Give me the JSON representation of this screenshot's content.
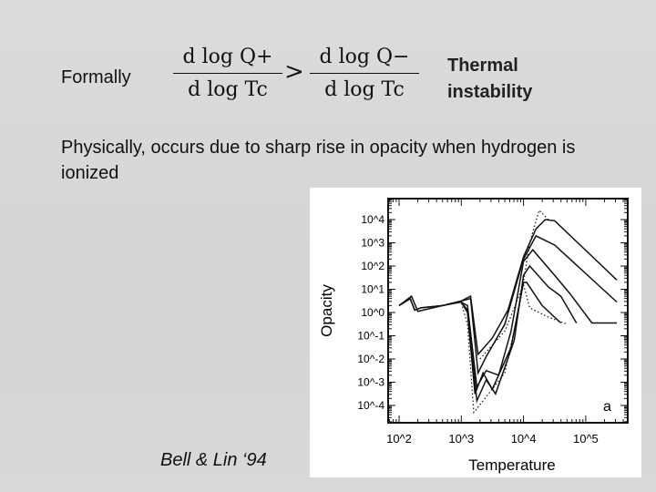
{
  "slide": {
    "formally_label": "Formally",
    "formula": {
      "lhs_num": "d log Q+",
      "lhs_den": "d log Tc",
      "operator": ">",
      "rhs_num": "d log Q−",
      "rhs_den": "d log Tc"
    },
    "result_label_line1": "Thermal",
    "result_label_line2": "instability",
    "body_text": "Physically, occurs due to sharp rise in opacity when hydrogen is ionized",
    "citation": "Bell & Lin ‘94"
  },
  "chart_data": {
    "type": "line",
    "xlabel": "Temperature",
    "ylabel": "Opacity",
    "panel_label": "a",
    "xscale": "log",
    "yscale": "log",
    "xlim_log10": [
      1.8,
      5.7
    ],
    "ylim_log10": [
      -4.9,
      4.9
    ],
    "x_ticks": [
      "10^2",
      "10^3",
      "10^4",
      "10^5"
    ],
    "y_ticks": [
      "10^4",
      "10^3",
      "10^2",
      "10^1",
      "10^0",
      "10^-1",
      "10^-2",
      "10^-3",
      "10^-4"
    ],
    "series": [
      {
        "name": "solid-1",
        "style": "solid",
        "points_log10": [
          [
            2,
            0.3
          ],
          [
            2.18,
            0.6
          ],
          [
            2.25,
            0.1
          ],
          [
            2.35,
            0.2
          ],
          [
            2.7,
            0.3
          ],
          [
            3,
            0.5
          ],
          [
            3.15,
            0.7
          ],
          [
            3.27,
            -1.8
          ],
          [
            3.5,
            -1.1
          ],
          [
            3.75,
            0.1
          ],
          [
            4,
            2.4
          ],
          [
            4.2,
            3.6
          ],
          [
            4.35,
            4
          ],
          [
            4.5,
            3.95
          ],
          [
            5.5,
            1.4
          ]
        ]
      },
      {
        "name": "solid-2",
        "style": "solid",
        "points_log10": [
          [
            2,
            0.3
          ],
          [
            2.18,
            0.6
          ],
          [
            2.25,
            0.1
          ],
          [
            2.35,
            0.2
          ],
          [
            2.7,
            0.3
          ],
          [
            3,
            0.5
          ],
          [
            3.15,
            0.6
          ],
          [
            3.27,
            -2.6
          ],
          [
            3.4,
            -1.9
          ],
          [
            3.7,
            -0.5
          ],
          [
            4,
            2.3
          ],
          [
            4.2,
            3.3
          ],
          [
            4.5,
            2.9
          ],
          [
            5.5,
            0.45
          ]
        ]
      },
      {
        "name": "solid-3",
        "style": "solid",
        "points_log10": [
          [
            2,
            0.3
          ],
          [
            2.2,
            0.7
          ],
          [
            2.3,
            0.05
          ],
          [
            2.7,
            0.3
          ],
          [
            3,
            0.45
          ],
          [
            3.1,
            0.3
          ],
          [
            3.25,
            -3.2
          ],
          [
            3.4,
            -2.5
          ],
          [
            3.6,
            -2.7
          ],
          [
            3.8,
            -0.8
          ],
          [
            4,
            2.2
          ],
          [
            4.15,
            2.7
          ],
          [
            4.5,
            1.6
          ],
          [
            4.75,
            0.8
          ],
          [
            5.1,
            -0.45
          ],
          [
            5.5,
            -0.45
          ]
        ]
      },
      {
        "name": "solid-4",
        "style": "solid",
        "points_log10": [
          [
            3,
            0.45
          ],
          [
            3.1,
            0.1
          ],
          [
            3.25,
            -3.8
          ],
          [
            3.4,
            -2.9
          ],
          [
            3.55,
            -3.5
          ],
          [
            3.85,
            -1.2
          ],
          [
            4,
            1.6
          ],
          [
            4.1,
            2.0
          ],
          [
            4.4,
            1.1
          ],
          [
            4.6,
            0.7
          ],
          [
            4.85,
            -0.45
          ]
        ]
      },
      {
        "name": "solid-5",
        "style": "solid",
        "points_log10": [
          [
            3,
            0.45
          ],
          [
            3.1,
            0.0
          ],
          [
            3.22,
            -3.5
          ],
          [
            3.35,
            -2.6
          ],
          [
            3.5,
            -3.3
          ],
          [
            3.8,
            -1.5
          ],
          [
            4,
            1.3
          ],
          [
            4.05,
            1.3
          ],
          [
            4.3,
            0.3
          ],
          [
            4.6,
            -0.45
          ]
        ]
      },
      {
        "name": "dotted-1",
        "style": "dotted",
        "points_log10": [
          [
            3,
            0.4
          ],
          [
            3.1,
            -0.5
          ],
          [
            3.2,
            -4.3
          ],
          [
            3.35,
            -3.8
          ],
          [
            3.7,
            -2.6
          ],
          [
            3.95,
            0.5
          ],
          [
            4.1,
            3.0
          ],
          [
            4.25,
            4.4
          ],
          [
            4.4,
            4.0
          ]
        ]
      },
      {
        "name": "dotted-2",
        "style": "dotted",
        "points_log10": [
          [
            3.3,
            -2.0
          ],
          [
            3.7,
            -0.8
          ],
          [
            4.0,
            1.2
          ],
          [
            4.1,
            0.2
          ],
          [
            4.4,
            -0.2
          ],
          [
            4.7,
            -0.5
          ]
        ]
      }
    ]
  }
}
